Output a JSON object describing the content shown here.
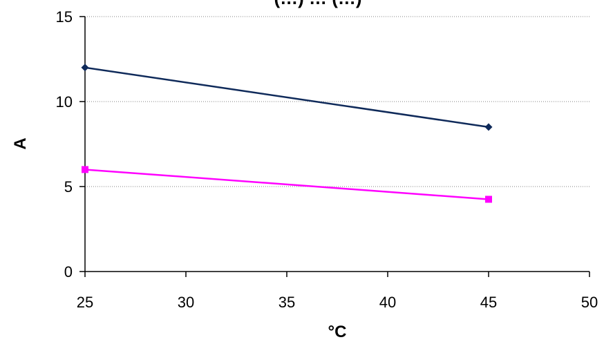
{
  "chart_data": {
    "type": "line",
    "title": "(…) … (…)",
    "xlabel": "°C",
    "ylabel": "A",
    "xlim": [
      25,
      50
    ],
    "ylim": [
      0,
      15
    ],
    "xticks": [
      25,
      30,
      35,
      40,
      45,
      50
    ],
    "yticks": [
      0,
      5,
      10,
      15
    ],
    "grid": "horizontal dotted",
    "series": [
      {
        "x": [
          25,
          45
        ],
        "values": [
          12,
          8.5
        ],
        "color": "#0f2a5a",
        "marker": "diamond"
      },
      {
        "x": [
          25,
          45
        ],
        "values": [
          6,
          4.25
        ],
        "color": "#ff00ff",
        "marker": "square"
      }
    ]
  }
}
